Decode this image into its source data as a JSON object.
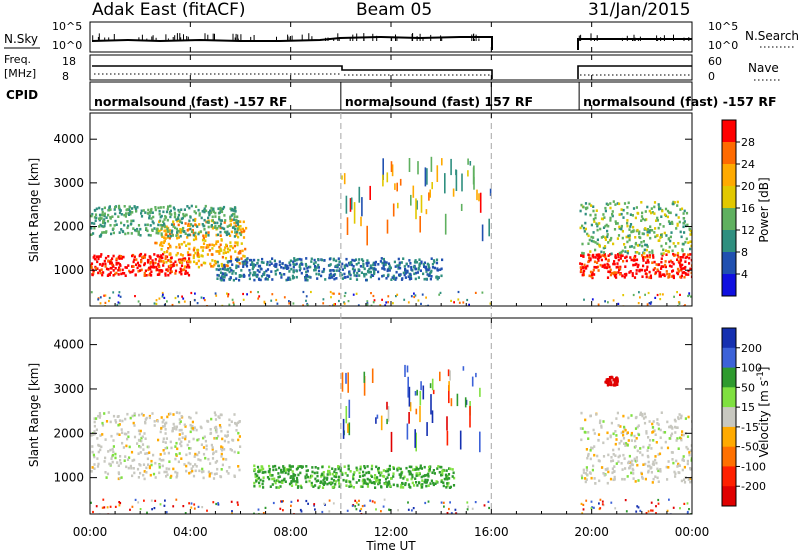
{
  "header": {
    "station": "Adak East (fitACF)",
    "beam": "Beam 05",
    "date": "31/Jan/2015"
  },
  "nsky_panel": {
    "left_label": "N.Sky",
    "right_label": "N.Search",
    "left_ticks": [
      "10^5",
      "10^0"
    ],
    "right_ticks": [
      "10^5",
      "10^0"
    ]
  },
  "freq_panel": {
    "left_label_line1": "Freq.",
    "left_label_line2": "[MHz]",
    "right_label": "Nave",
    "left_ticks": [
      "18",
      "8"
    ],
    "right_ticks": [
      "60",
      "0"
    ]
  },
  "cpid_panel": {
    "label": "CPID",
    "segments": [
      {
        "text": "normalsound (fast) -157 RF",
        "start_hour": 0,
        "end_hour": 10
      },
      {
        "text": "normalsound (fast) 157 RF",
        "start_hour": 10,
        "end_hour": 16
      },
      {
        "text": "normalsound (fast) -157 RF",
        "start_hour": 19.5,
        "end_hour": 24
      }
    ]
  },
  "power_panel": {
    "ylabel": "Slant Range [km]",
    "cbar_label": "Power [dB]",
    "yticks": [
      "1000",
      "2000",
      "3000",
      "4000"
    ],
    "cbar_ticks": [
      "28",
      "24",
      "20",
      "16",
      "12",
      "8",
      "4"
    ],
    "cbar_colors": [
      "#ff0000",
      "#ff6a00",
      "#ffaa00",
      "#e2c800",
      "#5fb05f",
      "#2f8f7f",
      "#2050b0",
      "#1010e0"
    ]
  },
  "velocity_panel": {
    "ylabel": "Slant Range [km]",
    "cbar_label": "Velocity [m s^-1]",
    "yticks": [
      "1000",
      "2000",
      "3000",
      "4000"
    ],
    "cbar_ticks": [
      "200",
      "100",
      "50",
      "15",
      "-15",
      "-50",
      "-100",
      "-200"
    ],
    "cbar_colors": [
      "#1530b0",
      "#3c62d8",
      "#2e9a2e",
      "#7fe040",
      "#c8c8c0",
      "#ffaa00",
      "#ff7000",
      "#ff2000",
      "#e00000"
    ]
  },
  "xaxis": {
    "ticks": [
      "00:00",
      "04:00",
      "08:00",
      "12:00",
      "16:00",
      "20:00",
      "00:00"
    ],
    "label": "Time UT"
  },
  "chart_data": {
    "type": "heatmap",
    "title": "Adak East (fitACF)   Beam 05   31/Jan/2015",
    "xlabel": "Time UT",
    "ylabel": "Slant Range [km]",
    "xlim": [
      0,
      24
    ],
    "ylim": [
      180,
      4600
    ],
    "data_gaps_hours": [
      [
        16,
        19.5
      ]
    ],
    "mode_change_hours": [
      10,
      16
    ],
    "panels": [
      {
        "name": "Power [dB]",
        "clim": [
          0,
          30
        ],
        "features": [
          {
            "start_hour": 0.0,
            "end_hour": 4.0,
            "range_km": [
              900,
              1400
            ],
            "value": 28
          },
          {
            "start_hour": 2.5,
            "end_hour": 6.2,
            "range_km": [
              1100,
              2200
            ],
            "value": 20
          },
          {
            "start_hour": 0.0,
            "end_hour": 6.0,
            "range_km": [
              1800,
              2500
            ],
            "value": 10
          },
          {
            "start_hour": 5.0,
            "end_hour": 14.0,
            "range_km": [
              800,
              1300
            ],
            "value": 6
          },
          {
            "start_hour": 19.5,
            "end_hour": 24.0,
            "range_km": [
              850,
              1400
            ],
            "value": 28
          },
          {
            "start_hour": 19.5,
            "end_hour": 24.0,
            "range_km": [
              1400,
              2600
            ],
            "value": 12
          }
        ]
      },
      {
        "name": "Velocity [m s^-1]",
        "clim": [
          -200,
          200
        ],
        "features": [
          {
            "start_hour": 0.0,
            "end_hour": 6.0,
            "range_km": [
              1000,
              2500
            ],
            "value": 0
          },
          {
            "start_hour": 6.5,
            "end_hour": 14.5,
            "range_km": [
              800,
              1300
            ],
            "value": 40
          },
          {
            "start_hour": 19.5,
            "end_hour": 24.0,
            "range_km": [
              900,
              2500
            ],
            "value": 0
          },
          {
            "start_hour": 20.5,
            "end_hour": 21.0,
            "range_km": [
              3100,
              3300
            ],
            "value": -200
          }
        ]
      }
    ]
  }
}
